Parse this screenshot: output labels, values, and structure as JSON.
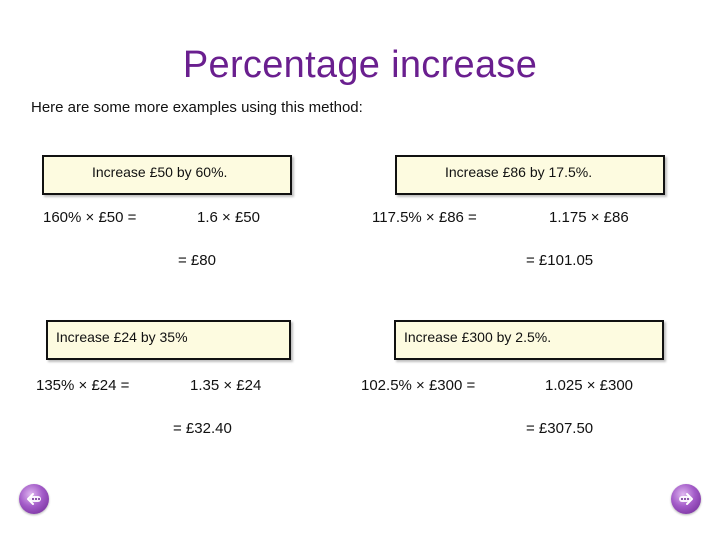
{
  "title": "Percentage increase",
  "subtitle": "Here are some more examples using this method:",
  "examples": [
    {
      "question": "Increase £50 by 60%.",
      "step_left": "160% × £50 =",
      "step_right": "1.6 × £50",
      "answer": "= £80"
    },
    {
      "question": "Increase £86 by 17.5%.",
      "step_left": "117.5% × £86 =",
      "step_right": "1.175 × £86",
      "answer": "= £101.05"
    },
    {
      "question": "Increase £24 by 35%",
      "step_left": "135% × £24 =",
      "step_right": "1.35 × £24",
      "answer": "= £32.40"
    },
    {
      "question": "Increase £300 by 2.5%.",
      "step_left": "102.5% × £300 =",
      "step_right": "1.025 × £300",
      "answer": "= £307.50"
    }
  ],
  "nav": {
    "back_icon": "back-arrow-icon",
    "forward_icon": "forward-arrow-icon"
  },
  "colors": {
    "title": "#6a1f8f",
    "box_fill": "#fdfbe0",
    "nav": "#a35bc8"
  }
}
